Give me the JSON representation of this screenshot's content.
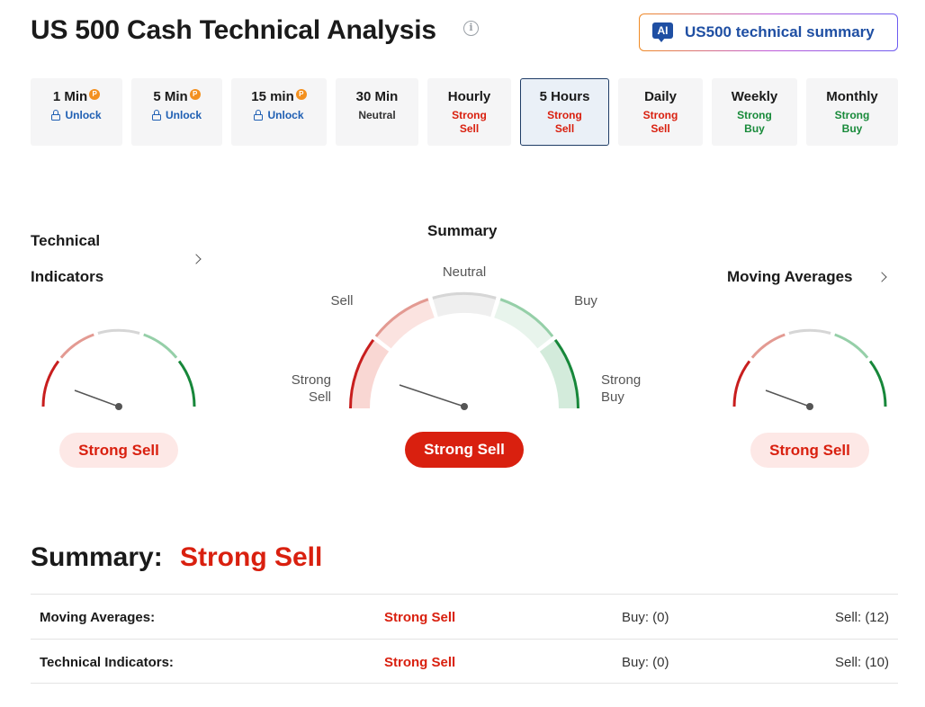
{
  "header": {
    "title": "US 500 Cash Technical Analysis",
    "info_icon": "info-icon",
    "ai_button": {
      "badge": "AI",
      "label": "US500 technical summary"
    }
  },
  "timeframes": [
    {
      "label": "1 Min",
      "status": "Unlock",
      "kind": "lock",
      "premium": true
    },
    {
      "label": "5 Min",
      "status": "Unlock",
      "kind": "lock",
      "premium": true
    },
    {
      "label": "15 min",
      "status": "Unlock",
      "kind": "lock",
      "premium": true
    },
    {
      "label": "30 Min",
      "status": "Neutral",
      "kind": "neutral",
      "premium": false
    },
    {
      "label": "Hourly",
      "status": "Strong\nSell",
      "kind": "sell",
      "premium": false
    },
    {
      "label": "5 Hours",
      "status": "Strong\nSell",
      "kind": "sell",
      "premium": false,
      "active": true
    },
    {
      "label": "Daily",
      "status": "Strong\nSell",
      "kind": "sell",
      "premium": false
    },
    {
      "label": "Weekly",
      "status": "Strong\nBuy",
      "kind": "buy",
      "premium": false
    },
    {
      "label": "Monthly",
      "status": "Strong\nBuy",
      "kind": "buy",
      "premium": false
    }
  ],
  "premium_badge": "P",
  "gauges": {
    "technical": {
      "title_line1": "Technical",
      "title_line2": "Indicators",
      "result": "Strong Sell"
    },
    "summary": {
      "title": "Summary",
      "result": "Strong Sell",
      "labels": {
        "strong_sell": "Strong\nSell",
        "sell": "Sell",
        "neutral": "Neutral",
        "buy": "Buy",
        "strong_buy": "Strong\nBuy"
      }
    },
    "moving": {
      "title": "Moving Averages",
      "result": "Strong Sell"
    }
  },
  "colors": {
    "strong_sell": "#c81e1e",
    "sell": "#e39a92",
    "neutral": "#d6d6d6",
    "buy": "#95cfa8",
    "strong_buy": "#17873a"
  },
  "summary": {
    "heading": "Summary:",
    "value": "Strong Sell",
    "rows": [
      {
        "name": "Moving Averages:",
        "signal": "Strong Sell",
        "buy": "Buy: (0)",
        "sell": "Sell: (12)"
      },
      {
        "name": "Technical Indicators:",
        "signal": "Strong Sell",
        "buy": "Buy: (0)",
        "sell": "Sell: (10)"
      }
    ]
  }
}
